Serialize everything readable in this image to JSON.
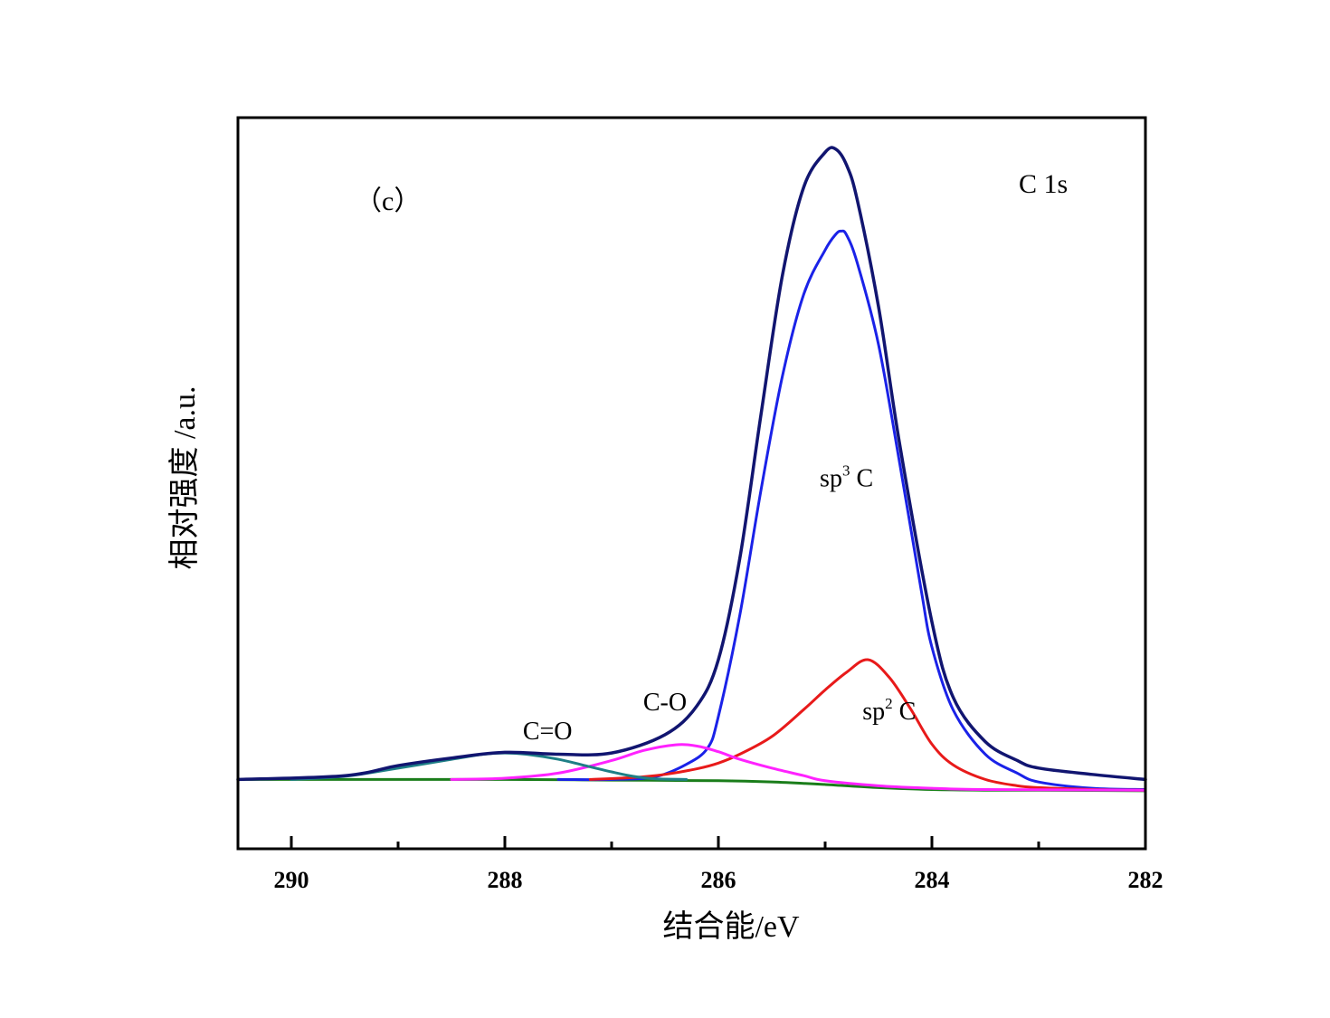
{
  "chart_data": {
    "type": "line",
    "title": "",
    "xlabel": "结合能/eV",
    "ylabel": "相对强度 /a.u.",
    "xlim": [
      290.5,
      282
    ],
    "ylim": [
      -0.11,
      1.05
    ],
    "x_reversed": true,
    "grid": false,
    "legend": "none",
    "xticks": [
      290,
      288,
      286,
      284,
      282
    ],
    "xticks_minor": [
      289,
      287,
      285,
      283
    ],
    "panel_label": "（c）",
    "region_label": "C 1s",
    "series": [
      {
        "name": "",
        "role": "envelope",
        "color": "#111570",
        "x": [
          290.5,
          289.5,
          289.0,
          288.5,
          288.0,
          287.5,
          287.0,
          286.5,
          286.2,
          286.0,
          285.8,
          285.6,
          285.4,
          285.2,
          285.0,
          284.9,
          284.8,
          284.7,
          284.5,
          284.3,
          284.0,
          283.8,
          283.5,
          283.2,
          283.0,
          282.5,
          282.0
        ],
        "y": [
          0.0,
          0.006,
          0.022,
          0.034,
          0.043,
          0.04,
          0.042,
          0.071,
          0.117,
          0.19,
          0.35,
          0.58,
          0.8,
          0.94,
          0.995,
          1.0,
          0.975,
          0.92,
          0.75,
          0.53,
          0.25,
          0.13,
          0.06,
          0.03,
          0.018,
          0.008,
          0.0
        ]
      },
      {
        "name": "sp³ C",
        "role": "component",
        "color": "#1a22e8",
        "x": [
          287.5,
          287.0,
          286.6,
          286.3,
          286.1,
          286.0,
          285.8,
          285.6,
          285.4,
          285.2,
          285.0,
          284.9,
          284.85,
          284.8,
          284.7,
          284.5,
          284.3,
          284.1,
          284.0,
          283.8,
          283.5,
          283.2,
          283.0,
          282.5,
          282.0
        ],
        "y": [
          0.0,
          0.0,
          0.004,
          0.024,
          0.05,
          0.1,
          0.26,
          0.46,
          0.64,
          0.77,
          0.84,
          0.865,
          0.87,
          0.864,
          0.82,
          0.69,
          0.5,
          0.3,
          0.21,
          0.11,
          0.04,
          0.01,
          -0.004,
          -0.014,
          -0.016
        ]
      },
      {
        "name": "sp² C",
        "role": "component",
        "color": "#e81a1a",
        "x": [
          287.2,
          286.8,
          286.5,
          286.2,
          286.0,
          285.8,
          285.5,
          285.2,
          285.0,
          284.8,
          284.6,
          284.4,
          284.2,
          284.0,
          283.8,
          283.5,
          283.2,
          283.0,
          282.5,
          282.0
        ],
        "y": [
          0.0,
          0.003,
          0.008,
          0.017,
          0.026,
          0.04,
          0.068,
          0.111,
          0.142,
          0.17,
          0.19,
          0.162,
          0.112,
          0.056,
          0.023,
          0.0,
          -0.01,
          -0.013,
          -0.016,
          -0.017
        ]
      },
      {
        "name": "C-O",
        "role": "component",
        "color": "#ff22ff",
        "x": [
          288.5,
          288.0,
          287.5,
          287.0,
          286.7,
          286.4,
          286.2,
          286.0,
          285.8,
          285.5,
          285.2,
          285.0,
          284.5,
          284.0,
          283.5,
          282.0
        ],
        "y": [
          0.0,
          0.002,
          0.01,
          0.03,
          0.046,
          0.055,
          0.053,
          0.044,
          0.032,
          0.018,
          0.006,
          -0.002,
          -0.01,
          -0.014,
          -0.016,
          -0.017
        ]
      },
      {
        "name": "C=O",
        "role": "component",
        "color": "#1e7f86",
        "x": [
          290.0,
          289.5,
          289.0,
          288.5,
          288.2,
          288.0,
          287.8,
          287.5,
          287.2,
          287.0,
          286.8,
          286.6,
          286.3
        ],
        "y": [
          0.0,
          0.005,
          0.018,
          0.032,
          0.04,
          0.042,
          0.04,
          0.032,
          0.02,
          0.012,
          0.005,
          0.001,
          0.0
        ]
      },
      {
        "name": "",
        "role": "background",
        "color": "#1a7d1a",
        "x": [
          290.5,
          288.0,
          287.0,
          286.0,
          285.5,
          285.0,
          284.5,
          284.0,
          283.5,
          283.0,
          282.0
        ],
        "y": [
          0.0,
          0.0,
          -0.001,
          -0.002,
          -0.004,
          -0.008,
          -0.013,
          -0.016,
          -0.017,
          -0.017,
          -0.018
        ]
      }
    ],
    "annotations": [
      {
        "text": "sp",
        "sup": "3",
        "suffix": " C",
        "x": 284.8,
        "y": 0.465
      },
      {
        "text": "sp",
        "sup": "2",
        "suffix": " C",
        "x": 284.4,
        "y": 0.095
      },
      {
        "text": "C-O",
        "x": 286.5,
        "y": 0.11
      },
      {
        "text": "C=O",
        "x": 287.6,
        "y": 0.064
      }
    ]
  }
}
